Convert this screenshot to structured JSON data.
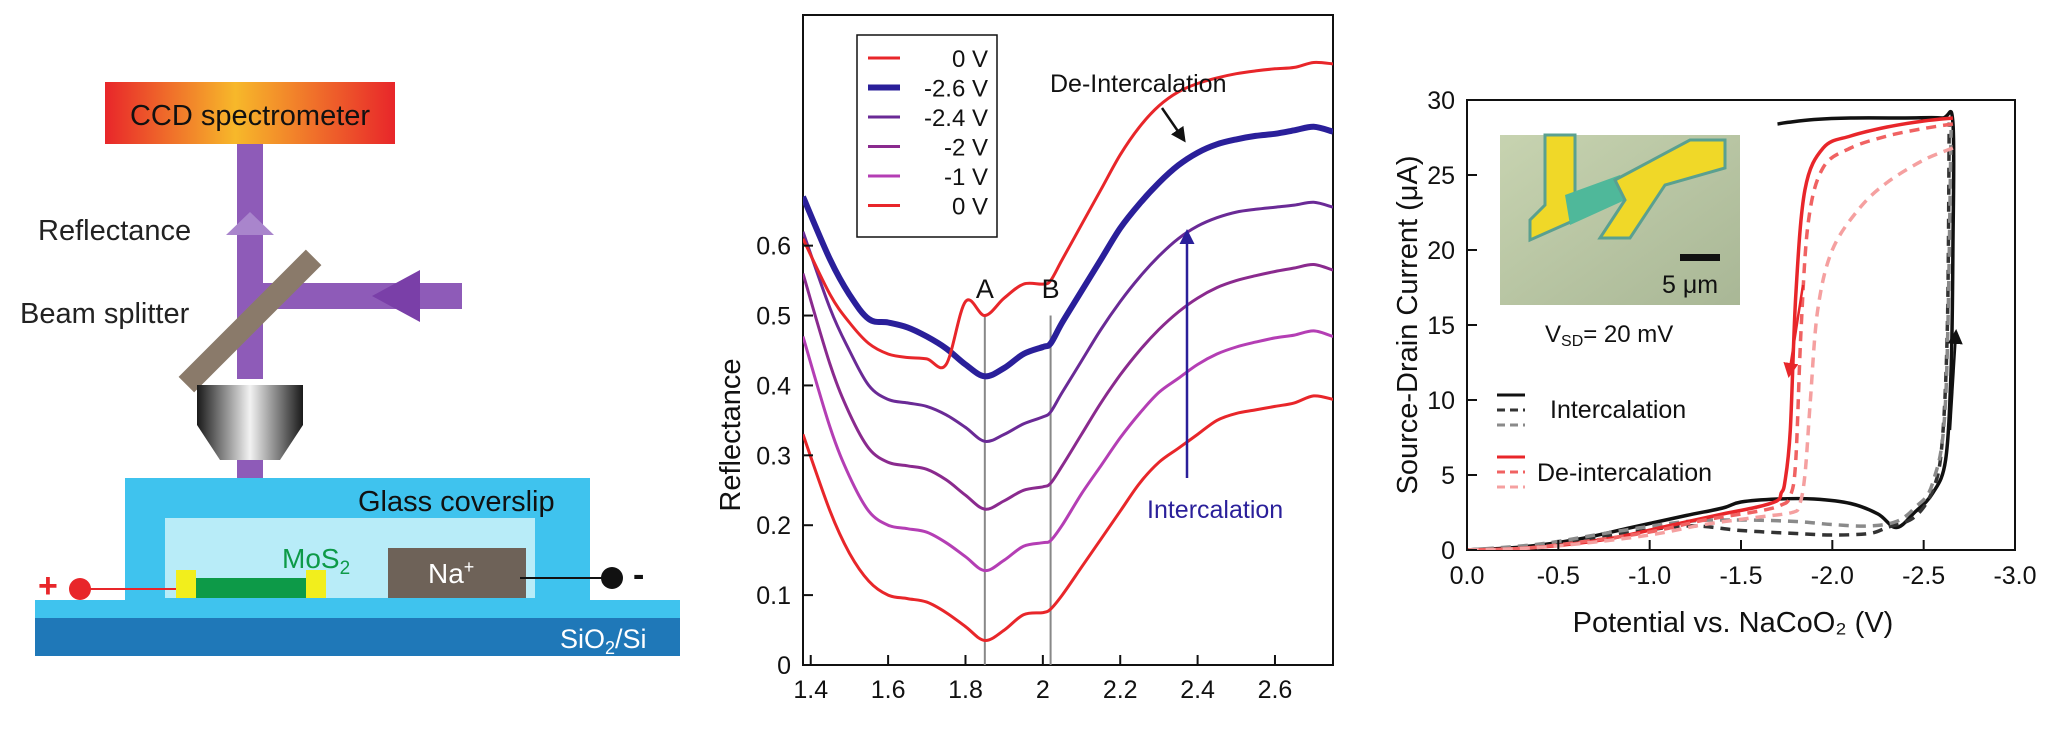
{
  "colors": {
    "purple_beam": "#8e5bb8",
    "purple_arrow": "#7a3fa8",
    "splitter": "#8a7a6a",
    "glass_outer": "#3fc3ee",
    "glass_inner": "#b8ecf8",
    "substrate_top": "#3fc3ee",
    "substrate": "#1f78b8",
    "mos2": "#0d9a48",
    "contact": "#f2ee1c",
    "na_block": "#6e6258",
    "red": "#e8262a",
    "navy": "#2a1f9a",
    "gray_line": "#888888",
    "dark_gray": "#555555",
    "light_red": "#f07070"
  },
  "schematic": {
    "ccd_label": "CCD spectrometer",
    "reflectance_label": "Reflectance",
    "beam_splitter_label": "Beam splitter",
    "glass_label": "Glass coverslip",
    "mos2_label": "MoS",
    "mos2_sub": "2",
    "na_label": "Na",
    "na_sup": "+",
    "plus": "+",
    "minus": "-",
    "substrate_label_a": "SiO",
    "substrate_sub": "2",
    "substrate_label_b": "/Si"
  },
  "chart_data": [
    {
      "type": "line",
      "xlabel": "",
      "ylabel": "Reflectance",
      "xlim": [
        1.38,
        2.75
      ],
      "ylim": [
        0,
        0.93
      ],
      "xticks": [
        "1.4",
        "1.6",
        "1.8",
        "2",
        "2.2",
        "2.4",
        "2.6"
      ],
      "yticks": [
        "0",
        "0.1",
        "0.2",
        "0.3",
        "0.4",
        "0.5",
        "0.6"
      ],
      "legend_position": "top-left",
      "legend": [
        "0 V",
        "-2.6 V",
        "-2.4 V",
        "-2 V",
        "-1 V",
        "0 V"
      ],
      "annotations": {
        "deintercalation": "De-Intercalation",
        "intercalation": "Intercalation",
        "peak_a": "A",
        "peak_b": "B"
      },
      "peak_positions": {
        "A": 1.85,
        "B": 2.02
      },
      "x": [
        1.38,
        1.45,
        1.5,
        1.55,
        1.6,
        1.65,
        1.7,
        1.75,
        1.8,
        1.85,
        1.9,
        1.95,
        2.0,
        2.02,
        2.05,
        2.1,
        2.15,
        2.2,
        2.25,
        2.3,
        2.35,
        2.4,
        2.45,
        2.5,
        2.55,
        2.6,
        2.65,
        2.7,
        2.75
      ],
      "series": [
        {
          "name": "0 V",
          "color": "#e8262a",
          "width": 3,
          "values": [
            0.33,
            0.22,
            0.16,
            0.12,
            0.1,
            0.095,
            0.09,
            0.075,
            0.055,
            0.035,
            0.05,
            0.072,
            0.075,
            0.08,
            0.1,
            0.14,
            0.18,
            0.22,
            0.26,
            0.29,
            0.31,
            0.33,
            0.35,
            0.36,
            0.365,
            0.37,
            0.375,
            0.385,
            0.38
          ]
        },
        {
          "name": "-1 V",
          "color": "#b43eb4",
          "width": 3,
          "values": [
            0.47,
            0.34,
            0.27,
            0.22,
            0.2,
            0.195,
            0.19,
            0.175,
            0.155,
            0.135,
            0.15,
            0.17,
            0.175,
            0.178,
            0.2,
            0.245,
            0.285,
            0.325,
            0.36,
            0.39,
            0.41,
            0.43,
            0.445,
            0.455,
            0.462,
            0.468,
            0.472,
            0.478,
            0.47
          ]
        },
        {
          "name": "-2 V",
          "color": "#8a2a8e",
          "width": 3,
          "values": [
            0.56,
            0.43,
            0.36,
            0.31,
            0.29,
            0.285,
            0.28,
            0.265,
            0.243,
            0.223,
            0.235,
            0.25,
            0.255,
            0.26,
            0.285,
            0.33,
            0.375,
            0.415,
            0.45,
            0.48,
            0.505,
            0.525,
            0.54,
            0.55,
            0.557,
            0.563,
            0.568,
            0.573,
            0.565
          ]
        },
        {
          "name": "-2.4 V",
          "color": "#6a2a96",
          "width": 3,
          "values": [
            0.62,
            0.51,
            0.45,
            0.4,
            0.38,
            0.375,
            0.37,
            0.358,
            0.34,
            0.32,
            0.33,
            0.345,
            0.355,
            0.362,
            0.39,
            0.435,
            0.48,
            0.52,
            0.555,
            0.585,
            0.61,
            0.628,
            0.64,
            0.648,
            0.652,
            0.655,
            0.658,
            0.662,
            0.655
          ]
        },
        {
          "name": "-2.6 V",
          "color": "#2a1f9a",
          "width": 6,
          "values": [
            0.67,
            0.58,
            0.53,
            0.495,
            0.49,
            0.483,
            0.47,
            0.453,
            0.43,
            0.413,
            0.425,
            0.445,
            0.455,
            0.46,
            0.49,
            0.535,
            0.58,
            0.625,
            0.66,
            0.69,
            0.715,
            0.733,
            0.745,
            0.752,
            0.757,
            0.76,
            0.765,
            0.77,
            0.763
          ]
        },
        {
          "name": "0 V",
          "color": "#e8262a",
          "width": 3,
          "values": [
            0.61,
            0.53,
            0.49,
            0.46,
            0.445,
            0.44,
            0.438,
            0.43,
            0.52,
            0.5,
            0.525,
            0.545,
            0.545,
            0.55,
            0.58,
            0.63,
            0.68,
            0.73,
            0.77,
            0.8,
            0.82,
            0.832,
            0.84,
            0.846,
            0.85,
            0.853,
            0.855,
            0.862,
            0.86
          ]
        }
      ]
    },
    {
      "type": "line",
      "xlabel": "Potential vs. NaCoO₂ (V)",
      "ylabel": "Source-Drain Current (μA)",
      "xlim": [
        0,
        -3.0
      ],
      "ylim": [
        0,
        30
      ],
      "xticks": [
        "0.0",
        "-0.5",
        "-1.0",
        "-1.5",
        "-2.0",
        "-2.5",
        "-3.0"
      ],
      "yticks": [
        "0",
        "5",
        "10",
        "15",
        "20",
        "25",
        "30"
      ],
      "legend_position": "lower-left",
      "legend": [
        "Intercalation",
        "De-intercalation"
      ],
      "inset": {
        "scale_label": "5 μm",
        "vsd_label_a": "V",
        "vsd_sub": "SD",
        "vsd_label_b": "= 20 mV"
      },
      "series": [
        {
          "name": "Intercalation",
          "color": "#111111",
          "dash": "none",
          "x": [
            0,
            -0.3,
            -0.6,
            -0.9,
            -1.2,
            -1.4,
            -1.5,
            -1.7,
            -1.9,
            -2.1,
            -2.25,
            -2.35,
            -2.45,
            -2.55,
            -2.62,
            -2.65,
            -2.66,
            -2.66,
            -2.6,
            -2.4,
            -2.1,
            -1.9,
            -1.75,
            -1.7
          ],
          "y": [
            0,
            0.2,
            0.7,
            1.5,
            2.3,
            2.8,
            3.2,
            3.4,
            3.4,
            3.1,
            2.4,
            1.5,
            2.5,
            3.8,
            6.0,
            12,
            20,
            28.5,
            28.8,
            28.8,
            28.8,
            28.7,
            28.5,
            28.4
          ]
        },
        {
          "name": "Intercalation (run 2)",
          "color": "#333333",
          "dash": "10,7",
          "x": [
            0,
            -0.4,
            -0.8,
            -1.2,
            -1.5,
            -1.8,
            -2.0,
            -2.2,
            -2.3,
            -2.45,
            -2.55,
            -2.6,
            -2.63,
            -2.64
          ],
          "y": [
            0,
            0.3,
            1.0,
            1.6,
            1.3,
            1.1,
            1.0,
            1.1,
            1.5,
            2.2,
            4.0,
            7.0,
            15,
            28.5
          ]
        },
        {
          "name": "Intercalation (run 3)",
          "color": "#8a8a8a",
          "dash": "10,7",
          "x": [
            0,
            -0.4,
            -0.8,
            -1.2,
            -1.5,
            -1.8,
            -2.0,
            -2.2,
            -2.35,
            -2.45,
            -2.55,
            -2.62,
            -2.65
          ],
          "y": [
            0,
            0.4,
            1.2,
            1.9,
            2.0,
            1.9,
            1.7,
            1.6,
            1.9,
            2.8,
            4.5,
            10,
            28.0
          ]
        },
        {
          "name": "De-intercalation",
          "color": "#e8262a",
          "dash": "none",
          "x": [
            -2.66,
            -2.5,
            -2.3,
            -2.1,
            -1.95,
            -1.85,
            -1.8,
            -1.77,
            -1.74,
            -1.72,
            -1.7,
            -1.6,
            -1.4,
            -1.1,
            -0.8,
            -0.5,
            -0.2,
            0
          ],
          "y": [
            28.8,
            28.6,
            28.2,
            27.6,
            26.8,
            24.0,
            17.0,
            8.0,
            4.5,
            3.8,
            3.3,
            2.9,
            2.4,
            1.6,
            0.8,
            0.3,
            0.05,
            0
          ]
        },
        {
          "name": "De-intercalation (run 2)",
          "color": "#f06262",
          "dash": "10,7",
          "x": [
            -2.66,
            -2.5,
            -2.3,
            -2.1,
            -1.95,
            -1.87,
            -1.83,
            -1.8,
            -1.77,
            -1.72,
            -1.6,
            -1.3,
            -1.0,
            -0.6,
            -0.3,
            0
          ],
          "y": [
            28.4,
            28.1,
            27.6,
            26.8,
            25.5,
            22.0,
            15.0,
            6.0,
            3.6,
            3.0,
            2.6,
            2.0,
            1.2,
            0.5,
            0.1,
            0
          ]
        },
        {
          "name": "De-intercalation (run 3)",
          "color": "#f5a0a0",
          "dash": "10,7",
          "x": [
            -2.66,
            -2.5,
            -2.3,
            -2.15,
            -2.0,
            -1.92,
            -1.88,
            -1.85,
            -1.82,
            -1.78,
            -1.6,
            -1.3,
            -1.0,
            -0.6,
            -0.3,
            0
          ],
          "y": [
            26.8,
            26.0,
            24.5,
            22.8,
            20.0,
            16.0,
            10.0,
            5.0,
            3.0,
            2.5,
            2.2,
            1.7,
            1.0,
            0.4,
            0.1,
            0
          ]
        }
      ]
    }
  ]
}
